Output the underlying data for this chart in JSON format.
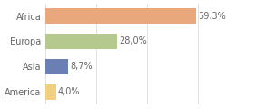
{
  "categories": [
    "Africa",
    "Europa",
    "Asia",
    "America"
  ],
  "values": [
    59.3,
    28.0,
    8.7,
    4.0
  ],
  "labels": [
    "59,3%",
    "28,0%",
    "8,7%",
    "4,0%"
  ],
  "bar_colors": [
    "#e8a87c",
    "#b5c98e",
    "#6b7fb5",
    "#f0d080"
  ],
  "background_color": "#ffffff",
  "xlim": [
    0,
    70
  ],
  "bar_height": 0.62,
  "label_fontsize": 7.0,
  "category_fontsize": 7.0,
  "grid_color": "#dddddd",
  "text_color": "#666666"
}
